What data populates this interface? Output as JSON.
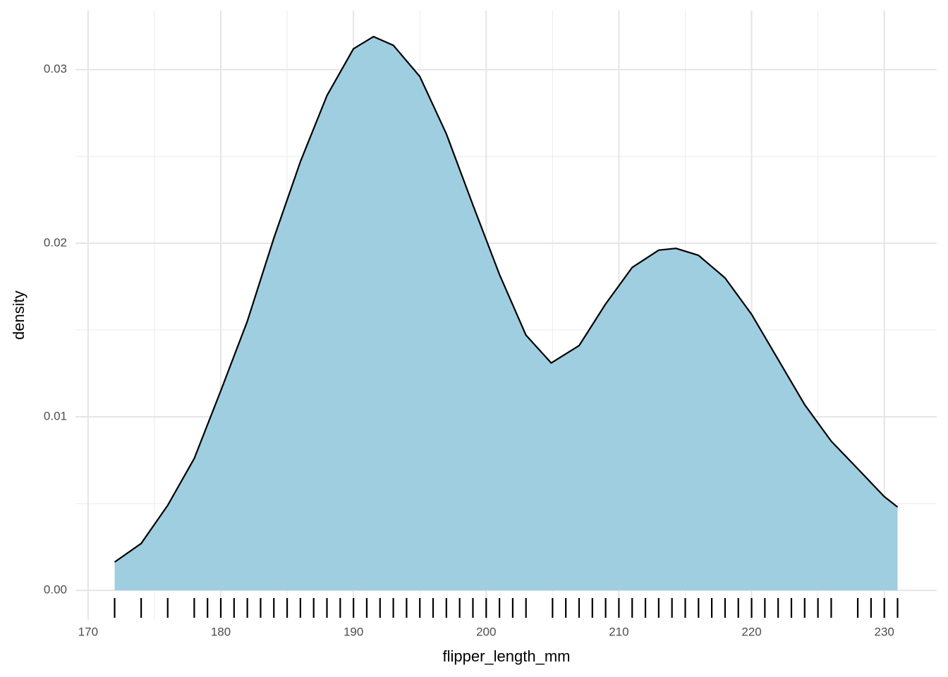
{
  "chart_data": {
    "type": "density",
    "x_label": "flipper_length_mm",
    "y_label": "density",
    "fill": "#9fcee0",
    "line_color": "#000000",
    "grid": true,
    "xlim": [
      169.05,
      233.95
    ],
    "ylim": [
      -0.0017,
      0.0334
    ],
    "xticks": [
      170,
      180,
      190,
      200,
      210,
      220,
      230
    ],
    "yticks": [
      {
        "value": 0,
        "label": "0.00"
      },
      0.01,
      0.02,
      0.03
    ],
    "x_minor_grid": [
      175,
      185,
      195,
      205,
      215,
      225
    ],
    "y_minor_grid": [
      0.005,
      0.015,
      0.025
    ],
    "x": [
      172,
      174,
      176,
      178,
      180,
      182,
      184,
      186,
      188,
      190,
      191.5,
      193,
      195,
      197,
      199,
      201,
      203,
      204.9,
      207,
      209,
      211,
      213,
      214.3,
      216,
      218,
      220,
      222,
      224,
      226,
      228,
      230,
      231
    ],
    "values": [
      0.00163,
      0.0027,
      0.0049,
      0.0076,
      0.0115,
      0.0155,
      0.0203,
      0.0247,
      0.0285,
      0.0312,
      0.0319,
      0.0314,
      0.0296,
      0.0263,
      0.0222,
      0.0182,
      0.0147,
      0.0131,
      0.0141,
      0.0165,
      0.0186,
      0.0196,
      0.0197,
      0.0193,
      0.018,
      0.0159,
      0.0133,
      0.0107,
      0.0086,
      0.007,
      0.0054,
      0.0048
    ],
    "rug": [
      172,
      174,
      176,
      178,
      179,
      180,
      181,
      182,
      183,
      184,
      185,
      186,
      187,
      188,
      189,
      190,
      191,
      192,
      193,
      194,
      195,
      196,
      197,
      198,
      199,
      200,
      201,
      202,
      203,
      205,
      206,
      207,
      208,
      209,
      210,
      211,
      212,
      213,
      214,
      215,
      216,
      217,
      218,
      219,
      220,
      221,
      222,
      223,
      224,
      225,
      226,
      228,
      229,
      230,
      231
    ]
  }
}
